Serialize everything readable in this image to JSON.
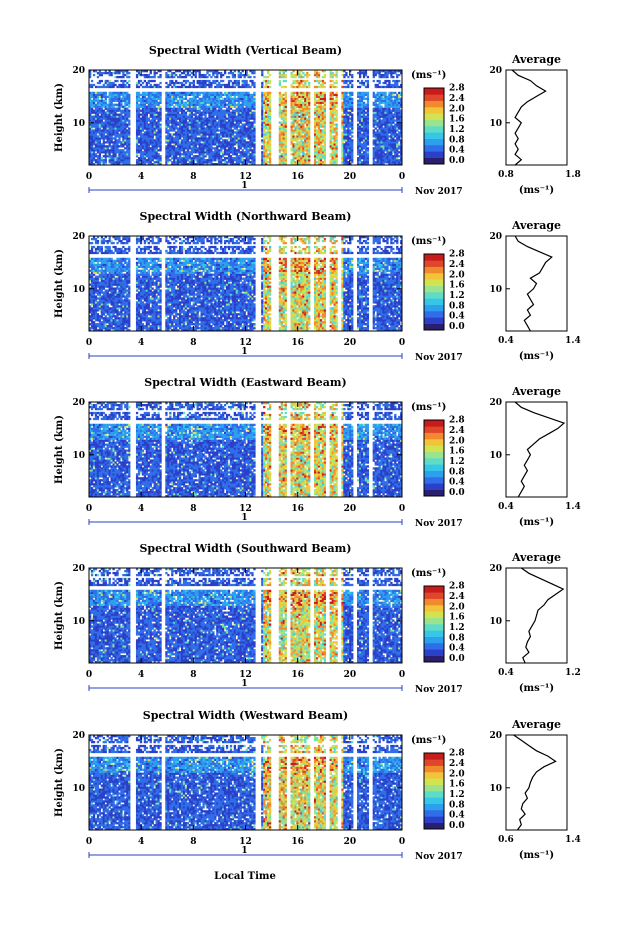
{
  "figure": {
    "xlabel": "Local Time",
    "date_label": "Nov 2017",
    "day_label": "1",
    "colorbar": {
      "unit": "(ms⁻¹)",
      "ticks": [
        "0.0",
        "0.4",
        "0.8",
        "1.2",
        "1.6",
        "2.0",
        "2.4",
        "2.8"
      ],
      "colors": [
        "#2a1f6e",
        "#2b3fc8",
        "#2f6ee8",
        "#2d9fef",
        "#35c6e8",
        "#5fdcc6",
        "#9be38f",
        "#d2e34f",
        "#f3c43a",
        "#f18a2c",
        "#e0472a",
        "#c81c1c"
      ]
    },
    "average_title": "Average",
    "average_xlabel": "(ms⁻¹)",
    "ylabel": "Height (km)"
  },
  "chart_data": [
    {
      "type": "heatmap",
      "title": "Spectral Width (Vertical Beam)",
      "xlabel": "Local Time",
      "ylabel": "Height (km)",
      "xlim": [
        0,
        24
      ],
      "ylim": [
        2,
        20
      ],
      "xticks": [
        "0",
        "4",
        "8",
        "12",
        "16",
        "20",
        "0"
      ],
      "yticks": [
        "10",
        "20"
      ],
      "zlim": [
        0.0,
        2.8
      ],
      "profile": {
        "title": "Average",
        "xlabel": "(ms⁻¹)",
        "xlim": [
          0.8,
          1.8
        ],
        "xticks": [
          "0.8",
          "1.8"
        ],
        "heights": [
          2,
          3,
          4,
          5,
          6,
          7,
          8,
          9,
          10,
          11,
          12,
          13,
          14,
          15,
          16,
          17,
          18,
          19,
          20
        ],
        "values": [
          0.95,
          1.05,
          0.95,
          1.0,
          0.95,
          1.0,
          0.95,
          1.0,
          1.05,
          0.95,
          1.0,
          1.05,
          1.15,
          1.3,
          1.45,
          1.3,
          1.2,
          1.0,
          0.9
        ]
      }
    },
    {
      "type": "heatmap",
      "title": "Spectral Width (Northward Beam)",
      "xlabel": "Local Time",
      "ylabel": "Height (km)",
      "xlim": [
        0,
        24
      ],
      "ylim": [
        2,
        20
      ],
      "xticks": [
        "0",
        "4",
        "8",
        "12",
        "16",
        "20",
        "0"
      ],
      "yticks": [
        "10",
        "20"
      ],
      "zlim": [
        0.0,
        2.8
      ],
      "profile": {
        "title": "Average",
        "xlabel": "(ms⁻¹)",
        "xlim": [
          0.4,
          1.4
        ],
        "xticks": [
          "0.4",
          "1.4"
        ],
        "heights": [
          2,
          3,
          4,
          5,
          6,
          7,
          8,
          9,
          10,
          11,
          12,
          13,
          14,
          15,
          16,
          17,
          18,
          19,
          20
        ],
        "values": [
          0.8,
          0.75,
          0.7,
          0.8,
          0.75,
          0.85,
          0.8,
          0.75,
          0.85,
          0.9,
          0.8,
          0.95,
          1.0,
          1.05,
          1.15,
          0.95,
          0.75,
          0.6,
          0.55
        ]
      }
    },
    {
      "type": "heatmap",
      "title": "Spectral Width (Eastward Beam)",
      "xlabel": "Local Time",
      "ylabel": "Height (km)",
      "xlim": [
        0,
        24
      ],
      "ylim": [
        2,
        20
      ],
      "xticks": [
        "0",
        "4",
        "8",
        "12",
        "16",
        "20",
        "0"
      ],
      "yticks": [
        "10",
        "20"
      ],
      "zlim": [
        0.0,
        2.8
      ],
      "profile": {
        "title": "Average",
        "xlabel": "(ms⁻¹)",
        "xlim": [
          0.4,
          1.4
        ],
        "xticks": [
          "0.4",
          "1.4"
        ],
        "heights": [
          2,
          3,
          4,
          5,
          6,
          7,
          8,
          9,
          10,
          11,
          12,
          13,
          14,
          15,
          16,
          17,
          18,
          19,
          20
        ],
        "values": [
          0.6,
          0.65,
          0.7,
          0.65,
          0.7,
          0.75,
          0.7,
          0.75,
          0.8,
          0.75,
          0.85,
          0.95,
          1.1,
          1.25,
          1.35,
          1.1,
          0.85,
          0.65,
          0.55
        ]
      }
    },
    {
      "type": "heatmap",
      "title": "Spectral Width (Southward Beam)",
      "xlabel": "Local Time",
      "ylabel": "Height (km)",
      "xlim": [
        0,
        24
      ],
      "ylim": [
        2,
        20
      ],
      "xticks": [
        "0",
        "4",
        "8",
        "12",
        "16",
        "20",
        "0"
      ],
      "yticks": [
        "10",
        "20"
      ],
      "zlim": [
        0.0,
        2.8
      ],
      "profile": {
        "title": "Average",
        "xlabel": "(ms⁻¹)",
        "xlim": [
          0.4,
          1.2
        ],
        "xticks": [
          "0.4",
          "1.2"
        ],
        "heights": [
          2,
          3,
          4,
          5,
          6,
          7,
          8,
          9,
          10,
          11,
          12,
          13,
          14,
          15,
          16,
          17,
          18,
          19,
          20
        ],
        "values": [
          0.65,
          0.62,
          0.7,
          0.66,
          0.68,
          0.72,
          0.7,
          0.74,
          0.78,
          0.8,
          0.82,
          0.9,
          0.95,
          1.05,
          1.15,
          1.0,
          0.85,
          0.7,
          0.6
        ]
      }
    },
    {
      "type": "heatmap",
      "title": "Spectral Width (Westward Beam)",
      "xlabel": "Local Time",
      "ylabel": "Height (km)",
      "xlim": [
        0,
        24
      ],
      "ylim": [
        2,
        20
      ],
      "xticks": [
        "0",
        "4",
        "8",
        "12",
        "16",
        "20",
        "0"
      ],
      "yticks": [
        "10",
        "20"
      ],
      "zlim": [
        0.0,
        2.8
      ],
      "profile": {
        "title": "Average",
        "xlabel": "(ms⁻¹)",
        "xlim": [
          0.6,
          1.4
        ],
        "xticks": [
          "0.6",
          "1.4"
        ],
        "heights": [
          2,
          3,
          4,
          5,
          6,
          7,
          8,
          9,
          10,
          11,
          12,
          13,
          14,
          15,
          16,
          17,
          18,
          19,
          20
        ],
        "values": [
          0.75,
          0.8,
          0.78,
          0.85,
          0.8,
          0.82,
          0.88,
          0.85,
          0.9,
          0.92,
          0.95,
          1.0,
          1.1,
          1.25,
          1.15,
          1.0,
          0.9,
          0.8,
          0.7
        ]
      }
    }
  ]
}
